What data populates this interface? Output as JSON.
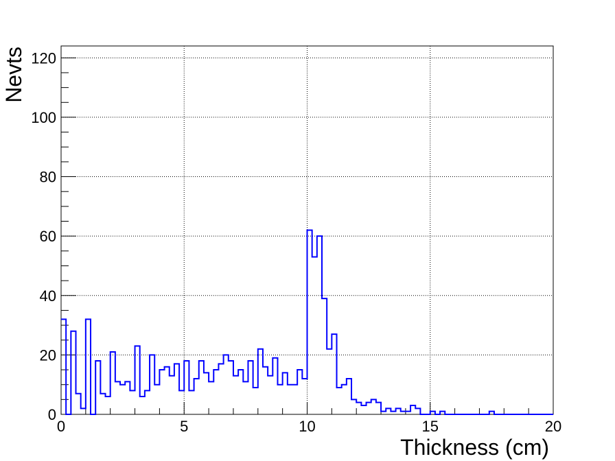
{
  "chart_data": {
    "type": "histogram",
    "title": "",
    "xlabel": "Thickness (cm)",
    "ylabel": "Nevts",
    "xlim": [
      0,
      20
    ],
    "ylim": [
      0,
      124
    ],
    "bin_width": 0.2,
    "x_ticks": [
      0,
      5,
      10,
      15,
      20
    ],
    "y_ticks": [
      0,
      20,
      40,
      60,
      80,
      100,
      120
    ],
    "grid": true,
    "legend": "none",
    "line_color": "#0000ff",
    "series": [
      {
        "values": [
          32,
          0,
          28,
          7,
          2,
          32,
          0,
          18,
          7,
          6,
          21,
          11,
          10,
          11,
          8,
          23,
          6,
          8,
          20,
          10,
          15,
          16,
          13,
          17,
          8,
          18,
          8,
          12,
          18,
          14,
          11,
          15,
          17,
          20,
          18,
          13,
          15,
          11,
          18,
          9,
          22,
          16,
          13,
          19,
          10,
          14,
          10,
          10,
          15,
          12,
          62,
          53,
          60,
          39,
          22,
          27,
          9,
          10,
          12,
          5,
          4,
          3,
          4,
          5,
          4,
          1,
          2,
          1,
          2,
          1,
          1,
          3,
          2,
          0,
          0,
          1,
          0,
          1,
          0,
          0,
          0,
          0,
          0,
          0,
          0,
          0,
          0,
          1,
          0,
          0,
          0,
          0,
          0,
          0,
          0,
          0,
          0,
          0,
          0,
          0
        ]
      }
    ]
  }
}
